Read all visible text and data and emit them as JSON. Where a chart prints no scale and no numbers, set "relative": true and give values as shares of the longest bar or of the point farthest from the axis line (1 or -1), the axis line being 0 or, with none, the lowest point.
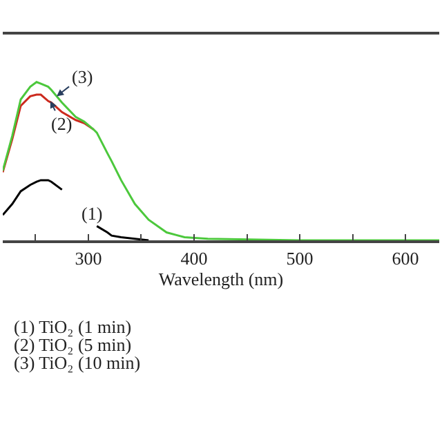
{
  "chart_data": {
    "type": "line",
    "relative": true,
    "xlabel": "Wavelength (nm)",
    "x": [
      219,
      228,
      236,
      245,
      251,
      255,
      262,
      265,
      275,
      288,
      296,
      305,
      308,
      318,
      322,
      331,
      344,
      357,
      374,
      391,
      413,
      500,
      632
    ],
    "series": [
      {
        "color": "#000000",
        "values": [
          0.16,
          0.23,
          0.31,
          0.35,
          0.37,
          0.38,
          0.38,
          0.37,
          0.32,
          null,
          null,
          null,
          0.09,
          0.05,
          0.03,
          0.02,
          0.01,
          0.0,
          null,
          null,
          null,
          null,
          null
        ]
      },
      {
        "color": "#cc2a1e",
        "values": [
          0.43,
          0.64,
          0.85,
          0.91,
          0.92,
          0.92,
          0.88,
          0.87,
          0.81,
          0.76,
          0.74,
          0.7,
          null,
          null,
          null,
          null,
          null,
          null,
          null,
          null,
          null,
          null,
          null
        ]
      },
      {
        "color": "#4cc83c",
        "values": [
          0.44,
          0.66,
          0.89,
          0.97,
          1.0,
          0.99,
          0.97,
          0.95,
          0.87,
          0.78,
          0.75,
          0.7,
          0.68,
          0.55,
          0.5,
          0.38,
          0.23,
          0.13,
          0.05,
          0.02,
          0.01,
          0.0,
          0.0
        ]
      }
    ],
    "xlim": [
      219,
      632
    ],
    "xticks": [
      {
        "value": 250,
        "label": null
      },
      300,
      {
        "value": 350,
        "label": null
      },
      400,
      {
        "value": 450,
        "label": null
      },
      500,
      {
        "value": 550,
        "label": null
      },
      600
    ],
    "annotations": [
      {
        "text": "(1)",
        "x": 290,
        "y": 0.22
      },
      {
        "text": "(2)",
        "x": 264,
        "y": 0.88
      },
      {
        "text": "(3)",
        "x": 270,
        "y": 0.91
      },
      "(1) TiO₂ (1 min)",
      "(2) TiO₂ (5 min)",
      "(3) TiO₂ (10 min)"
    ],
    "marker": "none",
    "line_style": "solid"
  }
}
